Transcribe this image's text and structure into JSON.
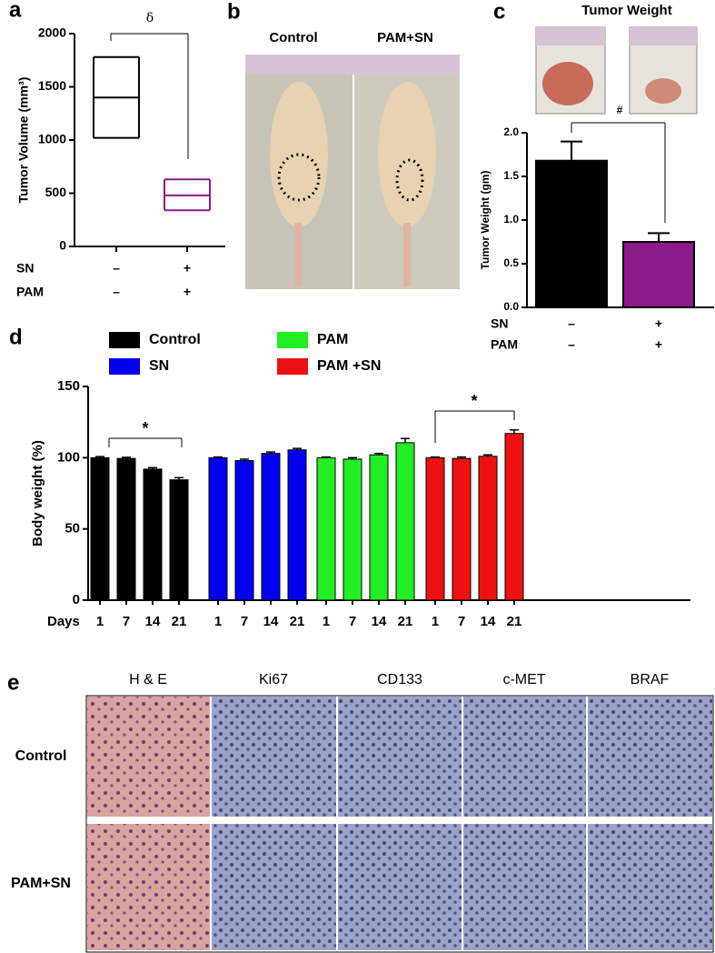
{
  "chart_data": [
    {
      "type": "box",
      "ylabel": "Tumor Volume (mm³)",
      "ylim": [
        0,
        2000
      ],
      "yticks": [
        0,
        500,
        1000,
        1500,
        2000
      ],
      "boxes": [
        {
          "color": "#000000",
          "low": 1020,
          "mid": 1400,
          "high": 1780
        },
        {
          "color": "#8b1a8b",
          "low": 340,
          "mid": 480,
          "high": 630
        }
      ],
      "factor_rows": [
        {
          "label": "SN",
          "marks": [
            "–",
            "+"
          ]
        },
        {
          "label": "PAM",
          "marks": [
            "–",
            "+"
          ]
        }
      ],
      "annotation": "δ"
    },
    {
      "type": "bar",
      "title": "Tumor Weight",
      "ylabel": "Tumor Weight (gm)",
      "ylim": [
        0,
        2.0
      ],
      "yticks": [
        {
          "value": 0,
          "label": "0.0"
        },
        0.5,
        {
          "value": 1,
          "label": "1.0"
        },
        1.5,
        {
          "value": 2,
          "label": "2.0"
        }
      ],
      "values": [
        1.68,
        0.75
      ],
      "errors": [
        0.22,
        0.1
      ],
      "colors": [
        "#000000",
        "#8b1a8b"
      ],
      "factor_rows": [
        {
          "label": "SN",
          "marks": [
            "–",
            "+"
          ]
        },
        {
          "label": "PAM",
          "marks": [
            "–",
            "+"
          ]
        }
      ],
      "annotation": "#"
    },
    {
      "type": "grouped_bar",
      "ylabel": "Body weight (%)",
      "xlabel": "Days",
      "ylim": [
        0,
        150
      ],
      "yticks": [
        0,
        50,
        100,
        150
      ],
      "categories": [
        "1",
        "7",
        "14",
        "21"
      ],
      "series": [
        {
          "name": "Control",
          "color": "#000000",
          "values": [
            100,
            99.5,
            92,
            84.5
          ],
          "errors": [
            0.8,
            0.8,
            1,
            1.5
          ]
        },
        {
          "name": "SN",
          "color": "#0000ee",
          "values": [
            100,
            98,
            103,
            105.5
          ],
          "errors": [
            0.5,
            1,
            1,
            1
          ]
        },
        {
          "name": "PAM",
          "color": "#22ee22",
          "values": [
            100,
            99,
            102,
            110.5
          ],
          "errors": [
            0.5,
            1,
            1,
            3
          ]
        },
        {
          "name": "PAM +SN",
          "color": "#ee1111",
          "values": [
            100,
            99.5,
            101,
            117
          ],
          "errors": [
            0.5,
            1,
            1,
            2.5
          ]
        }
      ],
      "annotations": [
        "*",
        "*"
      ]
    }
  ],
  "panel_labels": [
    "a",
    "b",
    "c",
    "d",
    "e"
  ],
  "photos_b": {
    "columns": [
      "Control",
      "PAM+SN"
    ]
  },
  "histology": {
    "columns": [
      "H & E",
      "Ki67",
      "CD133",
      "c-MET",
      "BRAF"
    ],
    "rows": [
      "Control",
      "PAM+SN"
    ]
  }
}
